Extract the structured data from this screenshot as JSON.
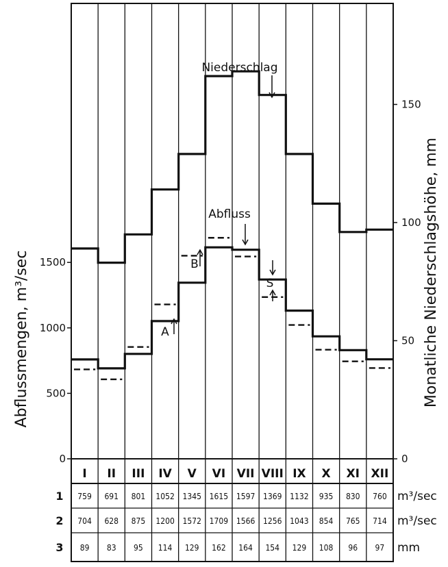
{
  "chart_data": {
    "type": "line",
    "categories": [
      "I",
      "II",
      "III",
      "IV",
      "V",
      "VI",
      "VII",
      "VIII",
      "IX",
      "X",
      "XI",
      "XII"
    ],
    "left_axis": {
      "label": "Abflussmengen, m³/sec",
      "ticks": [
        0,
        500,
        1000,
        1500
      ],
      "range": [
        0,
        1750
      ]
    },
    "right_axis": {
      "label": "Monatliche Niederschlagshöhe, mm",
      "ticks": [
        0,
        50,
        100,
        150
      ],
      "range": [
        0,
        175
      ]
    },
    "series": [
      {
        "name": "Niederschlag",
        "axis": "right",
        "style": "solid",
        "values": [
          89,
          83,
          95,
          114,
          129,
          162,
          164,
          154,
          129,
          108,
          96,
          97
        ]
      },
      {
        "name": "Abfluss",
        "axis": "left",
        "style": "solid",
        "values": [
          759,
          691,
          801,
          1052,
          1345,
          1615,
          1597,
          1369,
          1132,
          935,
          830,
          760
        ]
      },
      {
        "name": "",
        "axis": "left",
        "style": "dashed",
        "values": [
          704,
          628,
          875,
          1200,
          1572,
          1709,
          1566,
          1256,
          1043,
          854,
          765,
          714
        ]
      }
    ],
    "annotations": [
      {
        "text": "Niederschlag"
      },
      {
        "text": "Abfluss"
      },
      {
        "text": "A"
      },
      {
        "text": "B"
      },
      {
        "text": "S"
      }
    ],
    "table": {
      "rows": [
        {
          "label": "1",
          "unit": "m³/sec",
          "values": [
            "759",
            "691",
            "801",
            "1052",
            "1345",
            "1615",
            "1597",
            "1369",
            "1132",
            "935",
            "830",
            "760"
          ]
        },
        {
          "label": "2",
          "unit": "m³/sec",
          "values": [
            "704",
            "628",
            "875",
            "1200",
            "1572",
            "1709",
            "1566",
            "1256",
            "1043",
            "854",
            "765",
            "714"
          ]
        },
        {
          "label": "3",
          "unit": "mm",
          "values": [
            "89",
            "83",
            "95",
            "114",
            "129",
            "162",
            "164",
            "154",
            "129",
            "108",
            "96",
            "97"
          ]
        }
      ]
    },
    "grid": "vertical month lines",
    "colors": {
      "ink": "#111111",
      "background": "#ffffff"
    }
  }
}
